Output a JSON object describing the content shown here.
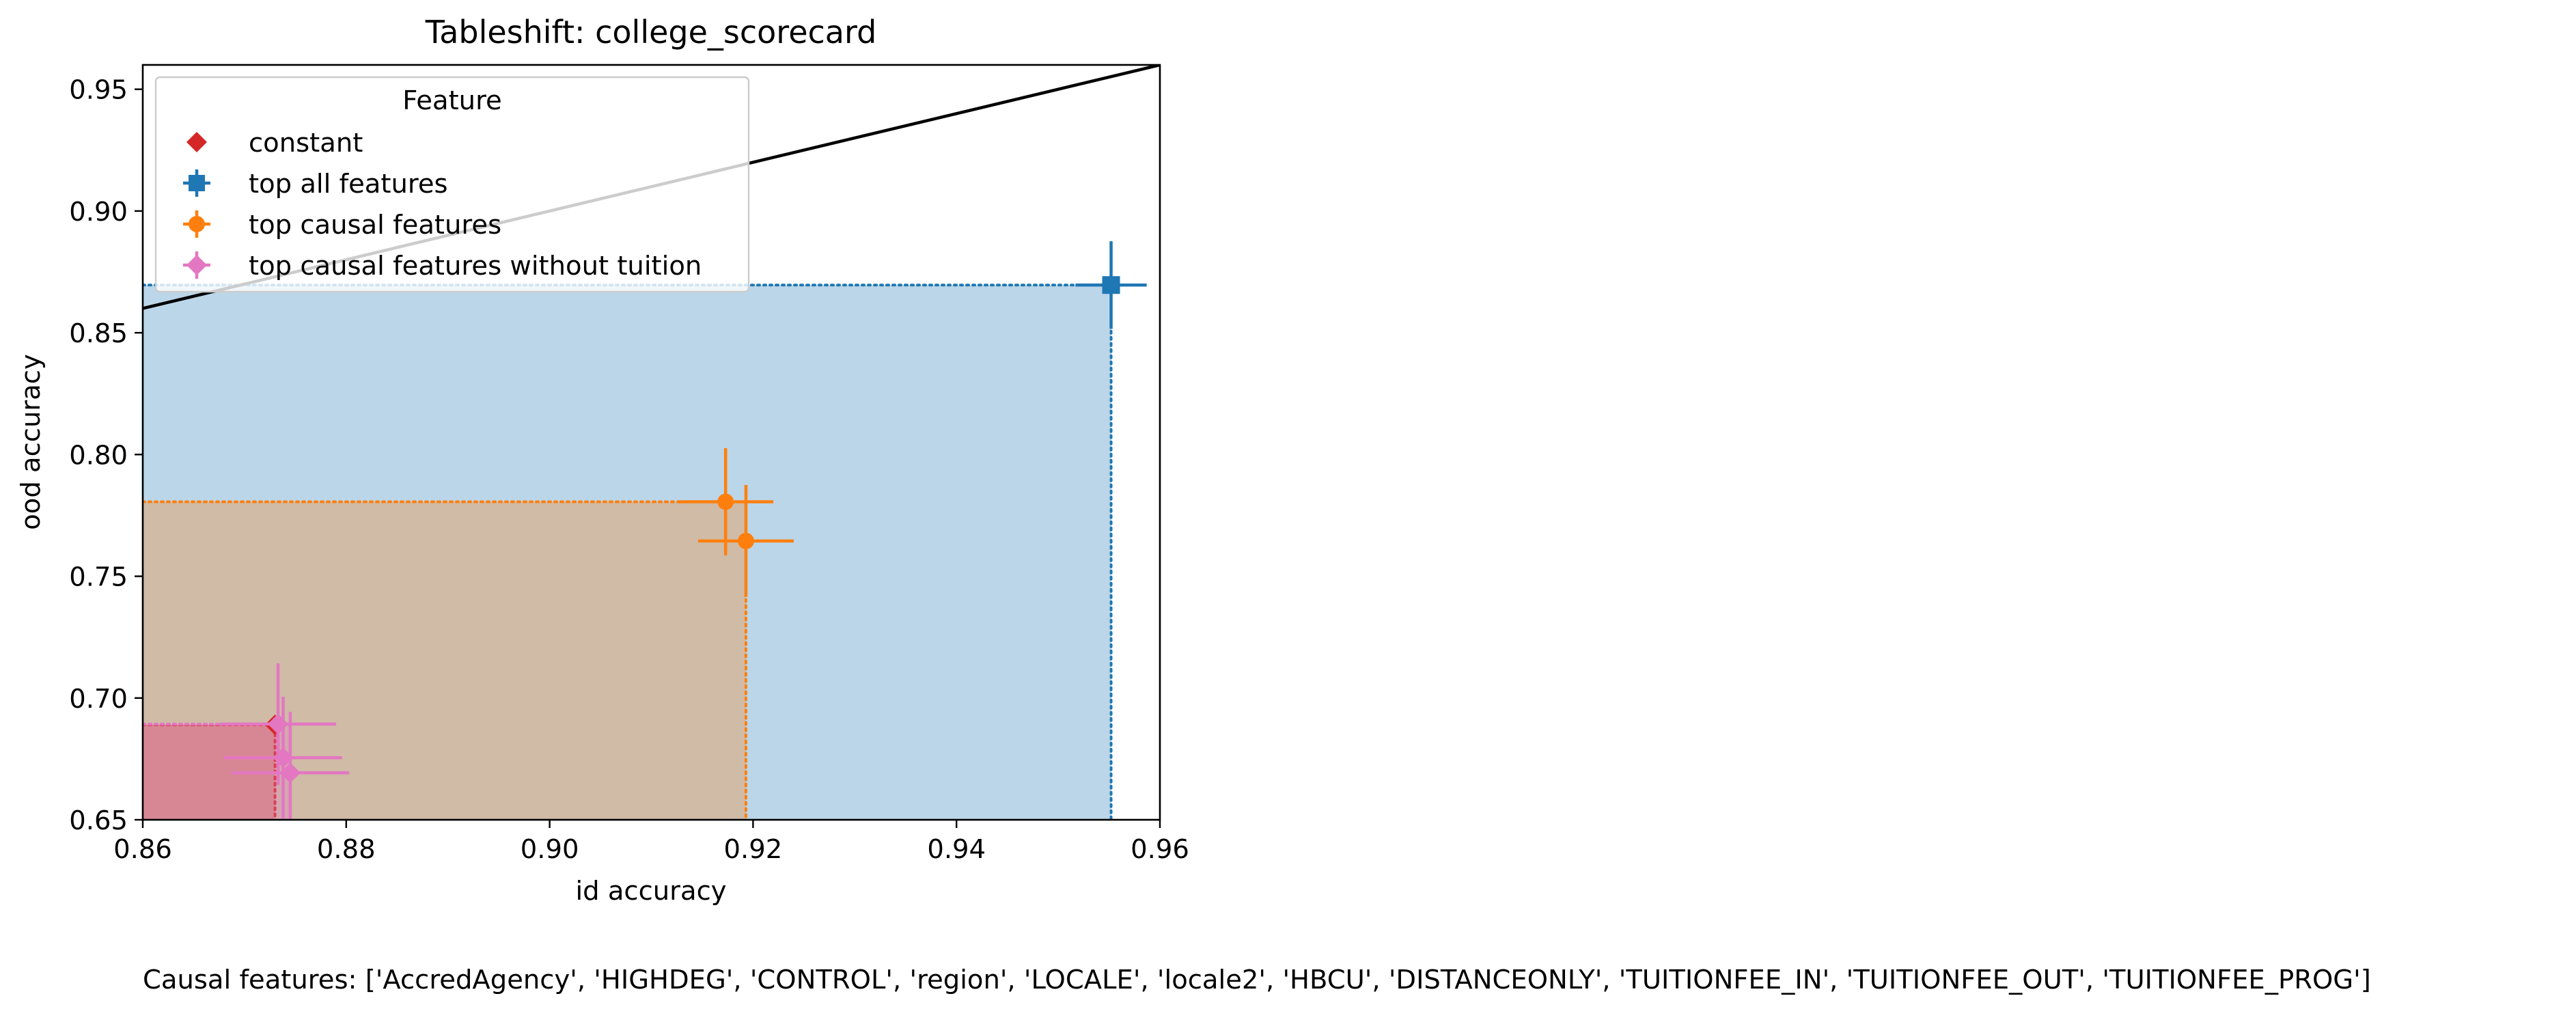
{
  "chart_data": {
    "type": "scatter",
    "title": "Tableshift: college_scorecard",
    "xlabel": "id accuracy",
    "ylabel": "ood accuracy",
    "xlim": [
      0.86,
      0.96
    ],
    "ylim": [
      0.65,
      0.96
    ],
    "x_ticks": [
      "0.86",
      "0.88",
      "0.90",
      "0.92",
      "0.94",
      "0.96"
    ],
    "y_ticks": [
      "0.65",
      "0.70",
      "0.75",
      "0.80",
      "0.85",
      "0.90",
      "0.95"
    ],
    "grid": false,
    "diagonal_line": {
      "from": [
        0.86,
        0.86
      ],
      "to": [
        0.96,
        0.96
      ],
      "color": "#000000"
    },
    "legend": {
      "title": "Feature",
      "placement": "top-left",
      "entries": [
        "constant",
        "top all features",
        "top causal features",
        "top causal features without tuition"
      ]
    },
    "series": [
      {
        "name": "constant",
        "color": "#d62728",
        "marker": "diamond",
        "points": [
          {
            "x": 0.873,
            "y": 0.689,
            "xerr": 0.0,
            "yerr": 0.0
          }
        ],
        "frontier": {
          "x": 0.873,
          "y": 0.689
        }
      },
      {
        "name": "top all features",
        "color": "#1f77b4",
        "marker": "square",
        "points": [
          {
            "x": 0.9552,
            "y": 0.8696,
            "xerr": 0.0035,
            "yerr": 0.018
          }
        ],
        "frontier": {
          "x": 0.9552,
          "y": 0.8696
        }
      },
      {
        "name": "top causal features",
        "color": "#ff7f0e",
        "marker": "circle",
        "points": [
          {
            "x": 0.9173,
            "y": 0.7806,
            "xerr": 0.0047,
            "yerr": 0.022
          },
          {
            "x": 0.9193,
            "y": 0.7645,
            "xerr": 0.0047,
            "yerr": 0.023
          }
        ],
        "frontier": {
          "x": 0.9193,
          "y": 0.7806
        }
      },
      {
        "name": "top causal features without tuition",
        "color": "#e377c2",
        "marker": "diamond",
        "points": [
          {
            "x": 0.8733,
            "y": 0.6893,
            "xerr": 0.0057,
            "yerr": 0.025
          },
          {
            "x": 0.8738,
            "y": 0.6755,
            "xerr": 0.0058,
            "yerr": 0.025
          },
          {
            "x": 0.8745,
            "y": 0.6693,
            "xerr": 0.0058,
            "yerr": 0.025
          }
        ],
        "frontier": {
          "x": 0.8745,
          "y": 0.6893
        }
      }
    ]
  },
  "footnote": "Causal features: ['AccredAgency', 'HIGHDEG', 'CONTROL', 'region', 'LOCALE', 'locale2', 'HBCU', 'DISTANCEONLY', 'TUITIONFEE_IN', 'TUITIONFEE_OUT', 'TUITIONFEE_PROG']"
}
